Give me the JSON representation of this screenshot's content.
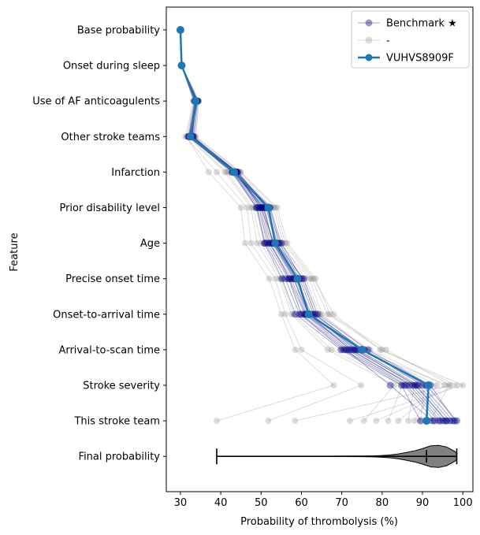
{
  "chart_data": {
    "type": "line",
    "title": "",
    "xlabel": "Probability of thrombolysis (%)",
    "ylabel": "Feature",
    "xlim": [
      26.5,
      102.5
    ],
    "xticks": [
      30,
      40,
      50,
      60,
      70,
      80,
      90,
      100
    ],
    "xtick_labels": [
      "30",
      "40",
      "50",
      "60",
      "70",
      "80",
      "90",
      "100"
    ],
    "grid": false,
    "legend_position": "top-right",
    "features": [
      "Base probability",
      "Onset during sleep",
      "Use of AF anticoagulents",
      "Other stroke teams",
      "Infarction",
      "Prior disability level",
      "Age",
      "Precise onset time",
      "Onset-to-arrival time",
      "Arrival-to-scan time",
      "Stroke severity",
      "This stroke team",
      "Final probability"
    ],
    "legend": [
      {
        "label": "Benchmark ★",
        "color": "#000080",
        "style": "faint-line-marker"
      },
      {
        "label": "-",
        "color": "#808080",
        "style": "faint-line-marker"
      },
      {
        "label": "VUHVS8909F",
        "color": "#1f77b4",
        "style": "line-marker"
      }
    ],
    "highlight_series": {
      "name": "VUHVS8909F",
      "color": "#1f77b4",
      "values": [
        30.0,
        30.3,
        33.8,
        32.5,
        43.3,
        51.8,
        53.5,
        59.0,
        61.8,
        75.0,
        91.5,
        91.0
      ]
    },
    "benchmark_series": {
      "color": "#000080",
      "values": [
        [
          30.0,
          30.3,
          33.8,
          32.2,
          43.5,
          49.8,
          52.0,
          57.5,
          61.0,
          72.5,
          86.8,
          94.5
        ],
        [
          30.0,
          30.3,
          34.0,
          32.8,
          43.6,
          50.5,
          53.0,
          58.6,
          62.5,
          73.5,
          88.2,
          96.0
        ],
        [
          30.0,
          30.3,
          33.6,
          32.0,
          43.0,
          49.0,
          51.0,
          56.0,
          59.5,
          70.5,
          85.5,
          93.0
        ],
        [
          30.0,
          30.3,
          34.2,
          33.2,
          44.0,
          52.0,
          54.5,
          59.5,
          63.0,
          75.5,
          90.0,
          97.5
        ],
        [
          30.0,
          30.3,
          33.9,
          32.4,
          43.2,
          50.8,
          52.8,
          58.0,
          61.8,
          72.0,
          87.5,
          95.2
        ],
        [
          30.0,
          30.3,
          33.7,
          32.6,
          43.8,
          51.2,
          53.6,
          60.5,
          64.0,
          76.5,
          92.0,
          98.0
        ],
        [
          30.0,
          30.3,
          34.1,
          32.1,
          42.8,
          48.8,
          50.8,
          55.2,
          58.5,
          69.8,
          84.8,
          89.5
        ],
        [
          30.0,
          30.3,
          33.5,
          33.0,
          43.4,
          50.2,
          52.4,
          57.0,
          60.8,
          71.5,
          86.0,
          94.0
        ],
        [
          30.0,
          30.3,
          34.3,
          32.3,
          44.2,
          51.5,
          54.0,
          59.2,
          62.0,
          74.0,
          89.0,
          96.8
        ],
        [
          30.0,
          30.3,
          33.8,
          32.9,
          43.1,
          49.5,
          51.5,
          56.8,
          60.0,
          71.0,
          82.0,
          92.5
        ],
        [
          30.0,
          30.3,
          34.0,
          32.5,
          43.7,
          50.0,
          53.2,
          58.2,
          61.2,
          73.0,
          88.5,
          95.8
        ],
        [
          30.0,
          30.3,
          33.9,
          32.7,
          43.9,
          52.2,
          55.0,
          60.0,
          63.5,
          75.0,
          91.0,
          98.5
        ]
      ]
    },
    "other_series": {
      "color": "#808080",
      "values": [
        [
          30.0,
          30.3,
          33.4,
          31.5,
          37.0,
          45.0,
          46.0,
          52.0,
          55.0,
          58.5,
          68.0,
          39.0
        ],
        [
          30.0,
          30.3,
          33.2,
          31.2,
          39.0,
          46.5,
          47.5,
          53.5,
          56.0,
          60.0,
          74.8,
          51.8
        ],
        [
          30.0,
          30.3,
          34.4,
          33.5,
          45.0,
          54.0,
          56.5,
          63.5,
          67.0,
          81.0,
          97.0,
          58.4
        ],
        [
          30.0,
          30.3,
          34.6,
          33.8,
          44.8,
          53.5,
          56.0,
          63.0,
          68.0,
          79.5,
          100.0,
          72.0
        ],
        [
          30.0,
          30.3,
          33.3,
          31.8,
          41.0,
          47.5,
          49.0,
          54.5,
          57.5,
          66.5,
          83.0,
          75.5
        ],
        [
          30.0,
          30.3,
          34.5,
          33.6,
          42.0,
          53.0,
          55.5,
          62.5,
          66.5,
          80.0,
          98.5,
          78.5
        ],
        [
          30.0,
          30.3,
          33.5,
          32.0,
          41.5,
          48.0,
          50.0,
          55.0,
          58.0,
          67.5,
          85.0,
          81.5
        ],
        [
          30.0,
          30.3,
          34.2,
          33.2,
          43.0,
          51.0,
          55.0,
          61.0,
          64.5,
          77.0,
          95.5,
          84.0
        ],
        [
          30.0,
          30.3,
          33.6,
          32.2,
          42.5,
          49.0,
          52.0,
          57.0,
          60.0,
          70.0,
          88.0,
          86.5
        ],
        [
          30.0,
          30.3,
          34.0,
          32.8,
          44.5,
          52.5,
          54.5,
          62.0,
          65.0,
          76.0,
          93.5,
          88.0
        ],
        [
          30.0,
          30.3,
          33.8,
          32.4,
          43.5,
          50.5,
          53.0,
          58.5,
          61.5,
          73.5,
          90.5,
          89.5
        ],
        [
          30.0,
          30.3,
          34.1,
          33.0,
          44.0,
          51.5,
          54.2,
          60.5,
          63.2,
          74.5,
          96.5,
          92.0
        ]
      ]
    },
    "final_distribution": {
      "min": 39.0,
      "max": 98.5,
      "median": 91.0,
      "density_x": [
        39,
        45,
        50,
        55,
        60,
        65,
        70,
        75,
        78,
        80,
        82,
        84,
        86,
        88,
        90,
        92,
        94,
        96,
        98,
        98.5
      ],
      "density_y": [
        0.01,
        0.01,
        0.01,
        0.012,
        0.012,
        0.015,
        0.02,
        0.03,
        0.05,
        0.08,
        0.13,
        0.22,
        0.35,
        0.5,
        0.7,
        0.95,
        1.0,
        0.85,
        0.45,
        0.3
      ]
    }
  }
}
